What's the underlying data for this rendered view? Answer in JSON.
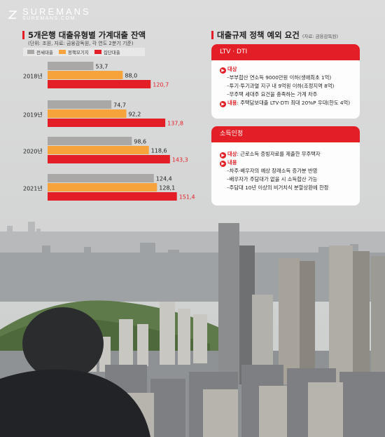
{
  "logo": {
    "name": "SUREMANS",
    "sub": "SUREMANS.COM"
  },
  "left_panel": {
    "title": "5개은행 대출유형별 가계대출 잔액",
    "subtitle": "(단위: 조원, 자료: 금융감독원, 각 연도 2분기 기준)"
  },
  "chart_data": {
    "type": "bar",
    "orientation": "horizontal",
    "title": "5개은행 대출유형별 가계대출 잔액",
    "subtitle": "(단위: 조원, 자료: 금융감독원, 각 연도 2분기 기준)",
    "categories": [
      "2018년",
      "2019년",
      "2020년",
      "2021년"
    ],
    "series": [
      {
        "name": "전세대출",
        "color": "#aaa7a7",
        "values": [
          53.7,
          74.7,
          98.6,
          124.4
        ],
        "labels": [
          "53,7",
          "74,7",
          "98,6",
          "124,4"
        ]
      },
      {
        "name": "정책모기지",
        "color": "#f7a33b",
        "values": [
          88.0,
          92.2,
          118.6,
          128.1
        ],
        "labels": [
          "88,0",
          "92,2",
          "118,6",
          "128,1"
        ]
      },
      {
        "name": "집단대출",
        "color": "#e41e26",
        "values": [
          120.7,
          137.8,
          143.3,
          151.4
        ],
        "labels": [
          "120,7",
          "137,8",
          "143,3",
          "151,4"
        ]
      }
    ],
    "legend_position": "top",
    "grid": false
  },
  "right_panel": {
    "title": "대출규제 정책 예외 요건",
    "source": "(자료: 금융감독원)",
    "ltv_card": {
      "header": "LTV · DTI",
      "target_label": "대상",
      "items": [
        "–부부합산 연소득 9000만원 이하(생애최초 1억)",
        "–투기·투기과열 지구 내 9억원 이하(조정지역 8억)",
        "–무주택 세대주 요건을 충족하는 가계 차주"
      ],
      "content_label": "내용",
      "content_text": ": 주택담보대출 LTV·DTI 최대 20%P 우대(한도 4억)"
    },
    "income_card": {
      "header": "소득인정",
      "target_label": "대상",
      "target_text": ": 근로소득 증빙자료를 제출한 무주택자",
      "content_label": "내용",
      "items": [
        "–차주·배우자의 예상 장래소득 증가분 반영",
        "–배우자가 주담대가 없을 시 소득합산 가능",
        "–주담대 10년 이상의 비거치식 분할상환에 한정"
      ]
    }
  }
}
